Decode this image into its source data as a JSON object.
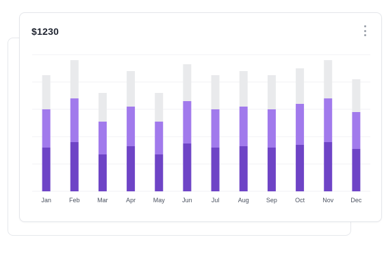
{
  "card": {
    "title": "$1230",
    "menu_icon": "more-vertical-icon"
  },
  "chart_data": {
    "type": "bar",
    "stacked": true,
    "categories": [
      "Jan",
      "Feb",
      "Mar",
      "Apr",
      "May",
      "Jun",
      "Jul",
      "Aug",
      "Sep",
      "Oct",
      "Nov",
      "Dec"
    ],
    "series": [
      {
        "color": "#6e44c6",
        "values": [
          32,
          36,
          27,
          33,
          27,
          35,
          32,
          33,
          32,
          34,
          36,
          31
        ]
      },
      {
        "color": "#a17aec",
        "values": [
          28,
          32,
          24,
          29,
          24,
          31,
          28,
          29,
          28,
          30,
          32,
          27
        ]
      },
      {
        "color": "#e9eaec",
        "values": [
          25,
          28,
          21,
          26,
          21,
          27,
          25,
          26,
          25,
          26,
          28,
          24
        ]
      }
    ],
    "ylim": [
      0,
      100
    ],
    "grid": true,
    "legend": "none"
  }
}
